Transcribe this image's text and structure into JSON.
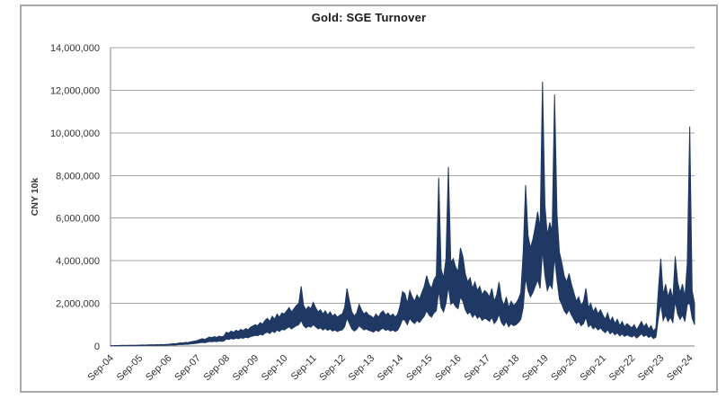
{
  "chart_data": {
    "type": "line",
    "title": "Gold: SGE Turnover",
    "ylabel": "CNY 10k",
    "xlabel": "",
    "ylim": [
      0,
      14000000
    ],
    "ytick_step": 2000000,
    "ytick_labels": [
      "0",
      "2,000,000",
      "4,000,000",
      "6,000,000",
      "8,000,000",
      "10,000,000",
      "12,000,000",
      "14,000,000"
    ],
    "xtick_labels": [
      "Sep-04",
      "Sep-05",
      "Sep-06",
      "Sep-07",
      "Sep-08",
      "Sep-09",
      "Sep-10",
      "Sep-11",
      "Sep-12",
      "Sep-13",
      "Sep-14",
      "Sep-15",
      "Sep-16",
      "Sep-17",
      "Sep-18",
      "Sep-19",
      "Sep-20",
      "Sep-21",
      "Sep-22",
      "Sep-23",
      "Sep-24"
    ],
    "xticks_every_n_points": 12,
    "grid": "horizontal",
    "legend_position": "none",
    "series": [
      {
        "name": "SGE gold turnover",
        "x_unit": "month",
        "x_start": "Sep-04",
        "x_end": "Nov-24",
        "monthly_high": [
          15000,
          18000,
          22000,
          20000,
          25000,
          30000,
          28000,
          32000,
          30000,
          35000,
          32000,
          38000,
          40000,
          45000,
          42000,
          50000,
          55000,
          60000,
          52000,
          65000,
          58000,
          70000,
          62000,
          75000,
          80000,
          95000,
          110000,
          100000,
          130000,
          150000,
          140000,
          170000,
          160000,
          190000,
          210000,
          230000,
          260000,
          300000,
          340000,
          310000,
          360000,
          420000,
          390000,
          440000,
          400000,
          460000,
          430000,
          470000,
          650000,
          600000,
          700000,
          640000,
          740000,
          680000,
          780000,
          720000,
          820000,
          760000,
          880000,
          940000,
          1000000,
          950000,
          1100000,
          1020000,
          1200000,
          1300000,
          1150000,
          1400000,
          1250000,
          1500000,
          1350000,
          1550000,
          1500000,
          1650000,
          1800000,
          1600000,
          1750000,
          1900000,
          2000000,
          2800000,
          1900000,
          1700000,
          1850000,
          1750000,
          2050000,
          1800000,
          1600000,
          1700000,
          1500000,
          1650000,
          1450000,
          1600000,
          1400000,
          1500000,
          1350000,
          1450000,
          1500000,
          1800000,
          2700000,
          2100000,
          1600000,
          1400000,
          1550000,
          1950000,
          1700000,
          1500000,
          1600000,
          1450000,
          1400000,
          1300000,
          1500000,
          1350000,
          1550000,
          1650000,
          1450000,
          1550000,
          1400000,
          1500000,
          1350000,
          1500000,
          1900000,
          2550000,
          2450000,
          2000000,
          2600000,
          2300000,
          2100000,
          2400000,
          2200000,
          2500000,
          2800000,
          3300000,
          2900000,
          2700000,
          3100000,
          3300000,
          7900000,
          3600000,
          3200000,
          4100000,
          8400000,
          3900000,
          4100000,
          3700000,
          3500000,
          4600000,
          4200000,
          3400000,
          3000000,
          3200000,
          2700000,
          3000000,
          2600000,
          2800000,
          2400000,
          2600000,
          2500000,
          2300000,
          2700000,
          2100000,
          2400000,
          3000000,
          2200000,
          1900000,
          2300000,
          1800000,
          2100000,
          1900000,
          2000000,
          2200000,
          2500000,
          4400000,
          7550000,
          5200000,
          4600000,
          5000000,
          5600000,
          6300000,
          5500000,
          12400000,
          6600000,
          5200000,
          5800000,
          5400000,
          11800000,
          6200000,
          4400000,
          3900000,
          3300000,
          3000000,
          3400000,
          2900000,
          2500000,
          2100000,
          2300000,
          1900000,
          2100000,
          2700000,
          1800000,
          2000000,
          1600000,
          1800000,
          1500000,
          1700000,
          1450000,
          1250000,
          1550000,
          1150000,
          1350000,
          1050000,
          1250000,
          950000,
          1150000,
          900000,
          1050000,
          950000,
          850000,
          1000000,
          750000,
          950000,
          1150000,
          900000,
          1050000,
          800000,
          950000,
          700000,
          850000,
          2600000,
          4100000,
          2400000,
          2900000,
          2300000,
          2700000,
          2200000,
          4200000,
          3000000,
          2500000,
          2900000,
          2300000,
          3900000,
          10300000,
          2600000,
          2000000
        ],
        "monthly_low": [
          8000,
          9000,
          11000,
          10000,
          12000,
          15000,
          14000,
          16000,
          15000,
          18000,
          16000,
          19000,
          20000,
          22000,
          21000,
          25000,
          27000,
          30000,
          26000,
          32000,
          29000,
          35000,
          31000,
          37000,
          40000,
          48000,
          55000,
          50000,
          65000,
          75000,
          70000,
          85000,
          80000,
          95000,
          105000,
          115000,
          130000,
          150000,
          170000,
          155000,
          180000,
          210000,
          195000,
          220000,
          200000,
          230000,
          215000,
          235000,
          330000,
          300000,
          350000,
          320000,
          370000,
          340000,
          390000,
          360000,
          410000,
          380000,
          440000,
          470000,
          500000,
          480000,
          550000,
          510000,
          600000,
          650000,
          580000,
          700000,
          630000,
          750000,
          680000,
          780000,
          750000,
          830000,
          900000,
          800000,
          880000,
          950000,
          1000000,
          1200000,
          950000,
          850000,
          930000,
          880000,
          1000000,
          900000,
          800000,
          850000,
          750000,
          830000,
          730000,
          800000,
          700000,
          750000,
          680000,
          730000,
          750000,
          900000,
          1300000,
          1050000,
          800000,
          700000,
          780000,
          950000,
          850000,
          750000,
          800000,
          730000,
          700000,
          650000,
          750000,
          680000,
          780000,
          830000,
          730000,
          780000,
          700000,
          750000,
          680000,
          750000,
          950000,
          1250000,
          1200000,
          1000000,
          1300000,
          1150000,
          1050000,
          1200000,
          1100000,
          1250000,
          1400000,
          1650000,
          1450000,
          1350000,
          1550000,
          1650000,
          2600000,
          1800000,
          1600000,
          2000000,
          2800000,
          1950000,
          2050000,
          1850000,
          1750000,
          2300000,
          2100000,
          1700000,
          1500000,
          1600000,
          1350000,
          1500000,
          1300000,
          1400000,
          1200000,
          1300000,
          1250000,
          1150000,
          1350000,
          1050000,
          1200000,
          1500000,
          1100000,
          950000,
          1150000,
          900000,
          1050000,
          950000,
          1000000,
          1100000,
          1250000,
          1800000,
          3200000,
          2600000,
          2300000,
          2500000,
          2800000,
          3100000,
          2700000,
          4500000,
          3300000,
          2600000,
          2900000,
          2700000,
          4200000,
          3100000,
          2200000,
          1950000,
          1650000,
          1500000,
          1700000,
          1450000,
          1250000,
          1050000,
          1150000,
          950000,
          1050000,
          1350000,
          900000,
          1000000,
          800000,
          900000,
          750000,
          850000,
          720000,
          620000,
          770000,
          570000,
          670000,
          520000,
          620000,
          470000,
          570000,
          450000,
          520000,
          470000,
          420000,
          500000,
          370000,
          470000,
          570000,
          450000,
          520000,
          400000,
          470000,
          350000,
          420000,
          1300000,
          2000000,
          1200000,
          1450000,
          1150000,
          1350000,
          1100000,
          2100000,
          1500000,
          1250000,
          1450000,
          1150000,
          1950000,
          2000000,
          1300000,
          1000000
        ]
      }
    ]
  },
  "colors": {
    "series": "#1f3864",
    "grid": "#a6a6a6",
    "axis": "#808080",
    "tick_text": "#333333",
    "title_text": "#1a1a1a",
    "frame_border": "#a8a8a8",
    "background": "#ffffff"
  }
}
